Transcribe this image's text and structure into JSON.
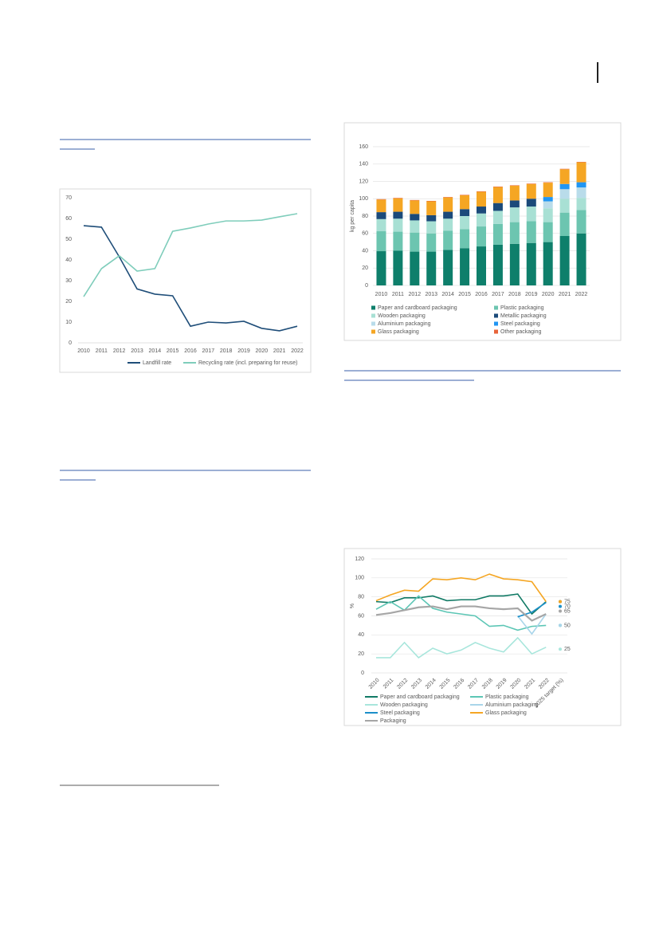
{
  "chart_data": [
    {
      "type": "line",
      "categories": [
        "2010",
        "2011",
        "2012",
        "2013",
        "2014",
        "2015",
        "2016",
        "2017",
        "2018",
        "2019",
        "2020",
        "2021",
        "2022"
      ],
      "series": [
        {
          "name": "Landfill rate",
          "color": "#1f4e79",
          "values": [
            56.5,
            55.8,
            41.5,
            26,
            23.5,
            22.7,
            8,
            10,
            9.6,
            10.4,
            7,
            5.8,
            8
          ]
        },
        {
          "name": "Recycling rate (incl. preparing for reuse)",
          "color": "#7fcdbb",
          "values": [
            22.3,
            35.8,
            42,
            34.6,
            35.8,
            53.8,
            55.4,
            57.3,
            58.8,
            58.8,
            59.2,
            60.8,
            62.3
          ]
        }
      ],
      "ylim": [
        0,
        70
      ],
      "yticks": [
        0,
        10,
        20,
        30,
        40,
        50,
        60,
        70
      ],
      "grid": false,
      "legend": "bottom"
    },
    {
      "type": "bar",
      "stacked": true,
      "y_label": "kg per capita",
      "categories": [
        "2010",
        "2011",
        "2012",
        "2013",
        "2014",
        "2015",
        "2016",
        "2017",
        "2018",
        "2019",
        "2020",
        "2021",
        "2022"
      ],
      "series": [
        {
          "name": "Paper and cardboard packaging",
          "color": "#0e7f6b",
          "values": [
            39.5,
            40,
            39,
            39,
            41,
            43,
            45,
            47,
            48,
            49,
            50,
            57,
            60
          ]
        },
        {
          "name": "Plastic packaging",
          "color": "#6cc5b0",
          "values": [
            23,
            22,
            22,
            21,
            22,
            22,
            23,
            24,
            25,
            25,
            23,
            27,
            27
          ]
        },
        {
          "name": "Wooden packaging",
          "color": "#a8e0d4",
          "values": [
            14,
            15,
            14,
            14,
            14,
            15,
            15,
            15,
            17,
            17,
            16,
            16,
            14
          ]
        },
        {
          "name": "Metallic packaging",
          "color": "#1b4a7a",
          "values": [
            8,
            8,
            7.5,
            7,
            8,
            8,
            8,
            9,
            8,
            9,
            0,
            0,
            0
          ]
        },
        {
          "name": "Aluminium packaging",
          "color": "#b9dcea",
          "values": [
            0,
            0,
            0,
            0,
            0,
            0,
            0,
            0,
            0,
            0,
            8,
            11,
            12
          ]
        },
        {
          "name": "Steel packaging",
          "color": "#2196f3",
          "values": [
            0,
            0,
            0,
            0,
            0,
            0,
            0,
            0,
            0,
            0,
            5,
            6,
            6
          ]
        },
        {
          "name": "Glass packaging",
          "color": "#f5a623",
          "values": [
            14.5,
            15.5,
            15.5,
            16,
            16.5,
            16,
            17,
            18.5,
            17,
            17,
            16.5,
            17,
            23
          ]
        },
        {
          "name": "Other packaging",
          "color": "#e8643a",
          "values": [
            0.5,
            0.5,
            0.5,
            0.5,
            0.5,
            0.5,
            0.5,
            0.5,
            0.5,
            0.5,
            0.5,
            0.5,
            0.5
          ]
        }
      ],
      "ylim": [
        0,
        160
      ],
      "yticks": [
        0,
        20,
        40,
        60,
        80,
        100,
        120,
        140,
        160
      ],
      "grid": true,
      "legend": "bottom"
    },
    {
      "type": "line",
      "y_label": "%",
      "categories": [
        "2010",
        "2011",
        "2012",
        "2013",
        "2014",
        "2015",
        "2016",
        "2017",
        "2018",
        "2019",
        "2020",
        "2021",
        "2022",
        "2025 target (%)"
      ],
      "series": [
        {
          "name": "Paper and cardboard packaging",
          "color": "#117a65",
          "values": [
            75,
            74,
            79,
            79,
            81,
            76,
            77,
            77,
            81,
            81,
            83,
            62,
            75,
            null
          ],
          "target": 75
        },
        {
          "name": "Plastic packaging",
          "color": "#5cc6b5",
          "values": [
            67,
            75,
            66,
            81,
            68,
            64,
            62,
            60,
            49,
            50,
            45,
            49,
            50,
            null
          ],
          "target": 50
        },
        {
          "name": "Wooden packaging",
          "color": "#a8e6dc",
          "values": [
            16,
            16,
            32,
            16,
            26,
            20,
            24,
            32,
            26,
            22,
            37,
            20,
            27,
            null
          ],
          "target": 25
        },
        {
          "name": "Aluminium packaging",
          "color": "#a9d5ea",
          "values": [
            null,
            null,
            null,
            null,
            null,
            null,
            null,
            null,
            null,
            null,
            60,
            41,
            62,
            null
          ],
          "target": 50
        },
        {
          "name": "Steel packaging",
          "color": "#1b8fc9",
          "values": [
            null,
            null,
            null,
            null,
            null,
            null,
            null,
            null,
            null,
            null,
            59,
            64,
            74,
            null
          ],
          "target": 70
        },
        {
          "name": "Glass packaging",
          "color": "#f5a623",
          "values": [
            76,
            82,
            87,
            86,
            99,
            98,
            100,
            98,
            104,
            99,
            98,
            96,
            75,
            null
          ],
          "target": 75
        },
        {
          "name": "Packaging",
          "color": "#a6a6a6",
          "values": [
            61,
            63,
            66,
            69,
            70,
            67,
            70,
            70,
            68,
            67,
            68,
            55,
            62,
            null
          ],
          "target": 65
        }
      ],
      "target_labels": [
        75,
        70,
        65,
        50,
        25
      ],
      "ylim": [
        0,
        120
      ],
      "yticks": [
        0,
        20,
        40,
        60,
        80,
        100,
        120
      ],
      "grid": true,
      "legend": "bottom"
    }
  ]
}
